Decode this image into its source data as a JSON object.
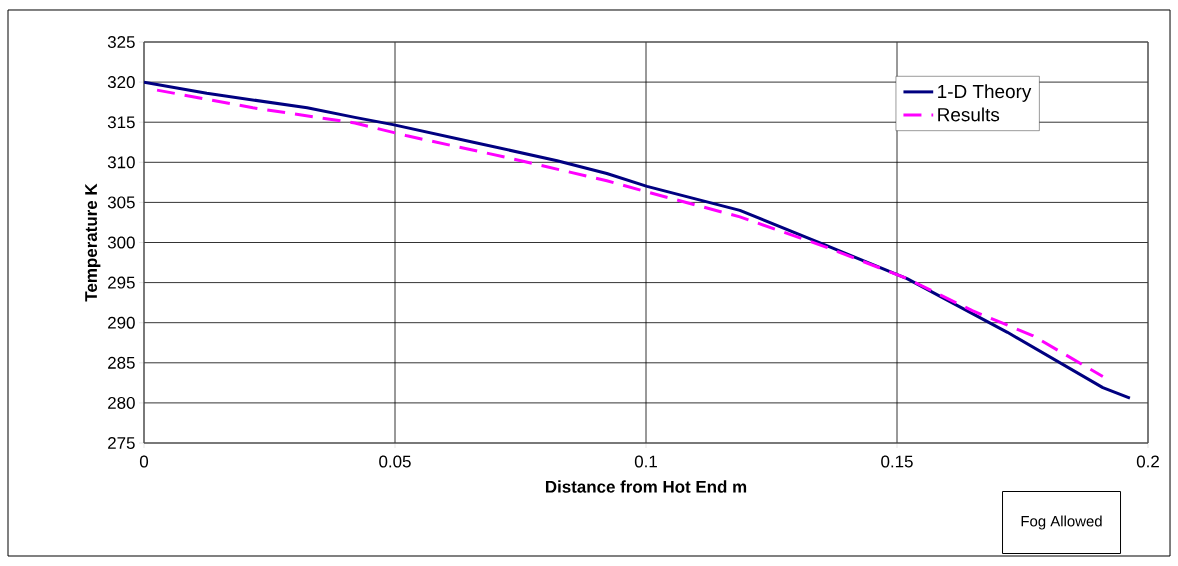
{
  "chart_data": {
    "type": "line",
    "xlabel": "Distance from Hot End m",
    "ylabel": "Temperature K",
    "xlim": [
      0,
      0.2
    ],
    "ylim": [
      275,
      325
    ],
    "xticks": [
      0,
      0.05,
      0.1,
      0.15,
      0.2
    ],
    "yticks": [
      275,
      280,
      285,
      290,
      295,
      300,
      305,
      310,
      315,
      320,
      325
    ],
    "grid": true,
    "legend": "top right",
    "marker": "none",
    "annotations": [
      "Fog Allowed"
    ],
    "series": [
      {
        "name": "1-D Theory",
        "color": "#000080",
        "line_style": "solid",
        "x": [
          0,
          0.0125,
          0.0325,
          0.042,
          0.0496,
          0.0656,
          0.0823,
          0.0922,
          0.1002,
          0.1187,
          0.136,
          0.152,
          0.172,
          0.191,
          0.1964
        ],
        "values": [
          320,
          318.6,
          316.8,
          315.6,
          314.7,
          312.5,
          310.2,
          308.6,
          307.0,
          304.0,
          299.6,
          295.5,
          288.8,
          281.9,
          280.6
        ]
      },
      {
        "name": "Results",
        "color": "#ff00ff",
        "line_style": "dashed",
        "x": [
          0.0026,
          0.0217,
          0.042,
          0.0524,
          0.0723,
          0.0922,
          0.1008,
          0.1187,
          0.136,
          0.152,
          0.165,
          0.177,
          0.191
        ],
        "values": [
          319.0,
          316.8,
          314.9,
          313.3,
          310.6,
          307.7,
          306.2,
          303.2,
          299.4,
          295.5,
          291.5,
          288.4,
          283.3
        ]
      }
    ]
  }
}
